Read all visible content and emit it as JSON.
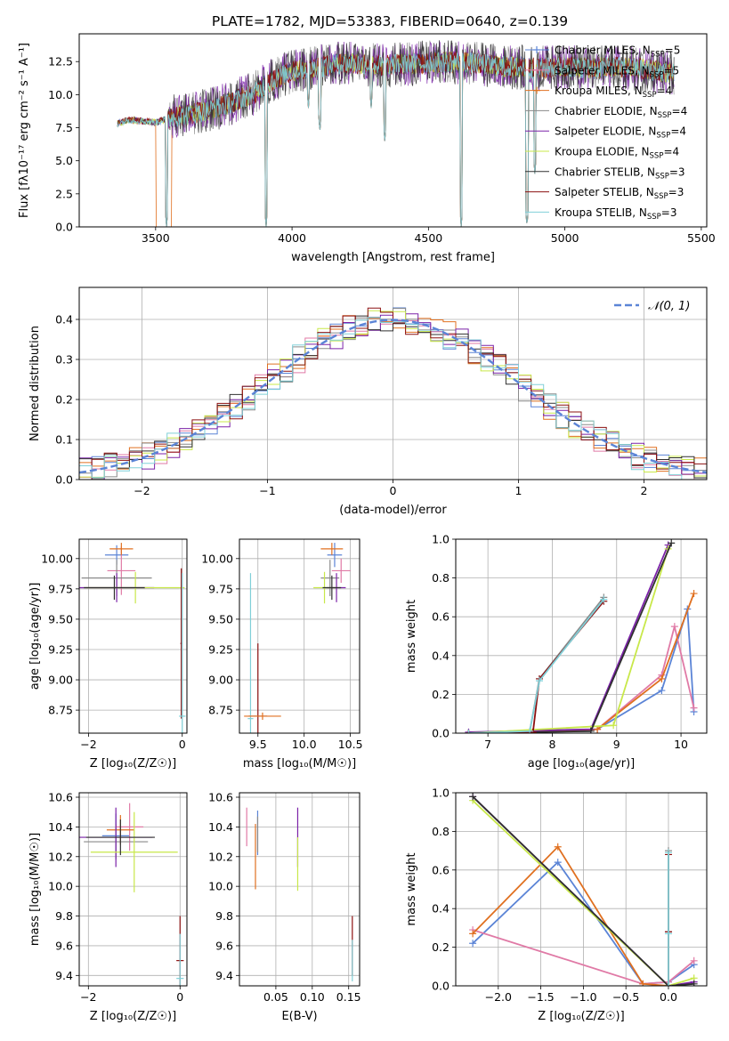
{
  "figure_title": "PLATE=1782, MJD=53383, FIBERID=0640, z=0.139",
  "colors": {
    "blue": "#5b84d6",
    "orange": "#e07020",
    "pink": "#e07aa6",
    "gray": "#8a8a8a",
    "purple": "#7b22a8",
    "lime": "#c8e84a",
    "dark": "#303030",
    "red": "#8c1010",
    "cyan": "#80d0d8"
  },
  "chart_data": [
    {
      "id": "spectrum",
      "type": "line",
      "xlabel": "wavelength [Angstrom, rest frame]",
      "ylabel": "Flux [fλ10⁻¹⁷ erg cm⁻² s⁻¹ A⁻¹]",
      "xlim": [
        3220,
        5520
      ],
      "ylim": [
        0,
        14.6
      ],
      "xticks": [
        3500,
        4000,
        4500,
        5000,
        5500
      ],
      "yticks": [
        0.0,
        2.5,
        5.0,
        7.5,
        10.0,
        12.5
      ],
      "legend_position": "upper-right",
      "series": [
        {
          "name": "Chabrier MILES, N",
          "sub": "SSP",
          "tail": "=5",
          "color": "#5b84d6",
          "marker": "+"
        },
        {
          "name": "Salpeter MILES, N",
          "sub": "SSP",
          "tail": "=5",
          "color": "#e07aa6",
          "marker": "+"
        },
        {
          "name": "Kroupa MILES, N",
          "sub": "SSP",
          "tail": "=4",
          "color": "#e07020",
          "marker": "+"
        },
        {
          "name": "Chabrier ELODIE, N",
          "sub": "SSP",
          "tail": "=4",
          "color": "#8a8a8a",
          "marker": ""
        },
        {
          "name": "Salpeter ELODIE, N",
          "sub": "SSP",
          "tail": "=4",
          "color": "#7b22a8",
          "marker": ""
        },
        {
          "name": "Kroupa ELODIE, N",
          "sub": "SSP",
          "tail": "=4",
          "color": "#c8e84a",
          "marker": ""
        },
        {
          "name": "Chabrier STELIB, N",
          "sub": "SSP",
          "tail": "=3",
          "color": "#303030",
          "marker": ""
        },
        {
          "name": "Salpeter STELIB, N",
          "sub": "SSP",
          "tail": "=3",
          "color": "#8c1010",
          "marker": ""
        },
        {
          "name": "Kroupa STELIB, N",
          "sub": "SSP",
          "tail": "=3",
          "color": "#80d0d8",
          "marker": ""
        }
      ],
      "profile": [
        [
          3360,
          7.8
        ],
        [
          3400,
          8.1
        ],
        [
          3450,
          8.0
        ],
        [
          3500,
          7.9
        ],
        [
          3560,
          8.3
        ],
        [
          3650,
          8.6
        ],
        [
          3760,
          9.2
        ],
        [
          3800,
          9.6
        ],
        [
          3870,
          10.2
        ],
        [
          3920,
          11.0
        ],
        [
          4000,
          11.8
        ],
        [
          4100,
          12.1
        ],
        [
          4200,
          12.4
        ],
        [
          4340,
          12.2
        ],
        [
          4400,
          12.3
        ],
        [
          4500,
          12.4
        ],
        [
          4620,
          12.5
        ],
        [
          4700,
          12.3
        ],
        [
          4800,
          12.1
        ],
        [
          4900,
          12.0
        ],
        [
          5000,
          12.1
        ],
        [
          5100,
          12.0
        ],
        [
          5200,
          12.1
        ],
        [
          5300,
          11.9
        ],
        [
          5400,
          11.6
        ]
      ],
      "dips": [
        [
          3540,
          0
        ],
        [
          3905,
          0
        ],
        [
          4060,
          9.0
        ],
        [
          4102,
          7.2
        ],
        [
          4290,
          9.0
        ],
        [
          4340,
          6.5
        ],
        [
          4620,
          0
        ],
        [
          4861,
          0
        ],
        [
          4890,
          4.0
        ]
      ]
    },
    {
      "id": "residuals",
      "type": "line",
      "xlabel": "(data-model)/error",
      "ylabel": "Normed distribution",
      "xlim": [
        -2.5,
        2.5
      ],
      "ylim": [
        0,
        0.48
      ],
      "xticks": [
        -2,
        -1,
        0,
        1,
        2
      ],
      "yticks": [
        0.0,
        0.1,
        0.2,
        0.3,
        0.4
      ],
      "grid": true,
      "legend_position": "upper-right",
      "normal_label": "𝒩(0, 1)",
      "normal_color": "#5b84d6",
      "bin_width": 0.1,
      "hist_colors": [
        "#5b84d6",
        "#e07aa6",
        "#e07020",
        "#8a8a8a",
        "#7b22a8",
        "#c8e84a",
        "#303030",
        "#8c1010",
        "#80d0d8"
      ]
    },
    {
      "id": "age-z",
      "type": "scatter",
      "xlabel": "Z [log₁₀(Z/Z☉)]",
      "ylabel": "age  [log₁₀(age/yr)]",
      "xlim": [
        -2.2,
        0.1
      ],
      "ylim": [
        8.56,
        10.16
      ],
      "xticks": [
        -2,
        0
      ],
      "yticks": [
        8.75,
        9.0,
        9.25,
        9.5,
        9.75,
        10.0
      ],
      "grid": true,
      "points": [
        {
          "x": -1.4,
          "y": 10.03,
          "xe": 0.25,
          "ye": 0.08,
          "color": "#5b84d6"
        },
        {
          "x": -1.3,
          "y": 9.9,
          "xe": 0.3,
          "ye": 0.2,
          "color": "#e07aa6"
        },
        {
          "x": -1.3,
          "y": 10.08,
          "xe": 0.25,
          "ye": 0.05,
          "color": "#e07020"
        },
        {
          "x": -1.4,
          "y": 9.84,
          "xe": 0.75,
          "ye": 0.15,
          "color": "#8a8a8a"
        },
        {
          "x": -1.4,
          "y": 9.76,
          "xe": 0.8,
          "ye": 0.12,
          "color": "#7b22a8"
        },
        {
          "x": -1.0,
          "y": 9.76,
          "xe": 1.05,
          "ye": 0.13,
          "color": "#c8e84a"
        },
        {
          "x": -1.45,
          "y": 9.76,
          "xe": 0.65,
          "ye": 0.1,
          "color": "#303030"
        },
        {
          "x": -0.02,
          "y": 9.3,
          "xe": 0.02,
          "ye": 0.62,
          "color": "#8c1010"
        },
        {
          "x": 0.0,
          "y": 8.7,
          "xe": 0.07,
          "ye": 1.18,
          "color": "#80d0d8"
        }
      ]
    },
    {
      "id": "age-mass",
      "type": "scatter",
      "xlabel": "mass [log₁₀(M/M☉)]",
      "ylabel": "",
      "xlim": [
        9.3,
        10.6
      ],
      "ylim": [
        8.56,
        10.16
      ],
      "xticks": [
        9.5,
        10.0,
        10.5
      ],
      "yticks": [
        8.75,
        9.0,
        9.25,
        9.5,
        9.75,
        10.0
      ],
      "grid": true,
      "points": [
        {
          "x": 10.33,
          "y": 10.03,
          "xe": 0.08,
          "ye": 0.1,
          "color": "#5b84d6"
        },
        {
          "x": 10.4,
          "y": 9.9,
          "xe": 0.1,
          "ye": 0.1,
          "color": "#e07aa6"
        },
        {
          "x": 10.3,
          "y": 10.08,
          "xe": 0.12,
          "ye": 0.05,
          "color": "#e07020"
        },
        {
          "x": 10.28,
          "y": 9.84,
          "xe": 0.1,
          "ye": 0.15,
          "color": "#8a8a8a"
        },
        {
          "x": 10.35,
          "y": 9.76,
          "xe": 0.1,
          "ye": 0.12,
          "color": "#7b22a8"
        },
        {
          "x": 10.22,
          "y": 9.76,
          "xe": 0.12,
          "ye": 0.13,
          "color": "#c8e84a"
        },
        {
          "x": 10.3,
          "y": 9.76,
          "xe": 0.1,
          "ye": 0.1,
          "color": "#303030"
        },
        {
          "x": 9.5,
          "y": 8.7,
          "xe": 0.1,
          "ye": 0.6,
          "color": "#8c1010"
        },
        {
          "x": 9.42,
          "y": 8.68,
          "xe": 0.03,
          "ye": 1.2,
          "color": "#80d0d8"
        },
        {
          "x": 9.55,
          "y": 8.7,
          "xe": 0.2,
          "ye": 0.03,
          "color": "#e07020"
        }
      ]
    },
    {
      "id": "weight-age",
      "type": "line",
      "xlabel": "age  [log₁₀(age/yr)]",
      "ylabel": "mass weight",
      "xlim": [
        6.5,
        10.4
      ],
      "ylim": [
        0,
        1
      ],
      "xticks": [
        7,
        8,
        9,
        10
      ],
      "yticks": [
        0.0,
        0.2,
        0.4,
        0.6,
        0.8,
        1.0
      ],
      "grid": true,
      "series": [
        {
          "color": "#5b84d6",
          "x": [
            6.7,
            7.7,
            8.7,
            9.7,
            10.1,
            10.2
          ],
          "y": [
            0,
            0.005,
            0.02,
            0.22,
            0.64,
            0.11
          ]
        },
        {
          "color": "#e07aa6",
          "x": [
            6.7,
            7.7,
            8.7,
            9.7,
            9.9,
            10.2
          ],
          "y": [
            0,
            0.005,
            0.02,
            0.3,
            0.55,
            0.13
          ]
        },
        {
          "color": "#e07020",
          "x": [
            6.7,
            7.7,
            8.7,
            9.7,
            10.2
          ],
          "y": [
            0,
            0.005,
            0.02,
            0.28,
            0.72
          ]
        },
        {
          "color": "#8a8a8a",
          "x": [
            6.7,
            7.65,
            7.8,
            8.8
          ],
          "y": [
            0,
            0.01,
            0.28,
            0.7
          ]
        },
        {
          "color": "#7b22a8",
          "x": [
            6.7,
            8.6,
            9.8
          ],
          "y": [
            0.005,
            0.02,
            0.97
          ]
        },
        {
          "color": "#c8e84a",
          "x": [
            6.7,
            8.95,
            9.8
          ],
          "y": [
            0,
            0.04,
            0.95
          ]
        },
        {
          "color": "#303030",
          "x": [
            6.7,
            8.6,
            9.85
          ],
          "y": [
            0,
            0.01,
            0.98
          ]
        },
        {
          "color": "#8c1010",
          "x": [
            6.7,
            7.7,
            7.8,
            8.8
          ],
          "y": [
            0,
            0.005,
            0.28,
            0.68
          ]
        },
        {
          "color": "#80d0d8",
          "x": [
            6.7,
            7.65,
            7.8,
            8.8
          ],
          "y": [
            0,
            0.01,
            0.27,
            0.69
          ]
        }
      ]
    },
    {
      "id": "mass-z",
      "type": "scatter",
      "xlabel": "Z [log₁₀(Z/Z☉)]",
      "ylabel": "mass [log₁₀(M/M☉)]",
      "xlim": [
        -2.2,
        0.15
      ],
      "ylim": [
        9.33,
        10.63
      ],
      "xticks": [
        -2,
        0
      ],
      "yticks": [
        9.4,
        9.6,
        9.8,
        10.0,
        10.2,
        10.4,
        10.6
      ],
      "grid": true,
      "points": [
        {
          "x": -1.4,
          "y": 10.34,
          "xe": 0.3,
          "ye": 0.15,
          "color": "#5b84d6"
        },
        {
          "x": -1.1,
          "y": 10.4,
          "xe": 0.3,
          "ye": 0.16,
          "color": "#e07aa6"
        },
        {
          "x": -1.3,
          "y": 10.38,
          "xe": 0.3,
          "ye": 0.1,
          "color": "#e07020"
        },
        {
          "x": -1.4,
          "y": 10.3,
          "xe": 0.7,
          "ye": 0.12,
          "color": "#8a8a8a"
        },
        {
          "x": -1.4,
          "y": 10.33,
          "xe": 0.8,
          "ye": 0.2,
          "color": "#7b22a8"
        },
        {
          "x": -1.0,
          "y": 10.23,
          "xe": 0.95,
          "ye": 0.27,
          "color": "#c8e84a"
        },
        {
          "x": -1.3,
          "y": 10.33,
          "xe": 0.75,
          "ye": 0.12,
          "color": "#303030"
        },
        {
          "x": 0.0,
          "y": 9.5,
          "xe": 0.08,
          "ye": 0.3,
          "color": "#8c1010"
        },
        {
          "x": 0.0,
          "y": 9.38,
          "xe": 0.08,
          "ye": 0.3,
          "color": "#80d0d8"
        }
      ]
    },
    {
      "id": "mass-ebv",
      "type": "scatter",
      "xlabel": "E(B-V)",
      "ylabel": "",
      "xlim": [
        0.0,
        0.165
      ],
      "ylim": [
        9.33,
        10.63
      ],
      "xticks": [
        0.05,
        0.1,
        0.15
      ],
      "yticks": [
        9.4,
        9.6,
        9.8,
        10.0,
        10.2,
        10.4,
        10.6
      ],
      "grid": true,
      "points": [
        {
          "x": 0.025,
          "y": 10.36,
          "xe": 0,
          "ye": 0.15,
          "color": "#5b84d6"
        },
        {
          "x": 0.01,
          "y": 10.4,
          "xe": 0,
          "ye": 0.13,
          "color": "#e07aa6"
        },
        {
          "x": 0.022,
          "y": 10.2,
          "xe": 0,
          "ye": 0.22,
          "color": "#e07020"
        },
        {
          "x": 0.025,
          "y": 10.35,
          "xe": 0,
          "ye": 0.12,
          "color": "#8a8a8a"
        },
        {
          "x": 0.08,
          "y": 10.33,
          "xe": 0,
          "ye": 0.2,
          "color": "#7b22a8"
        },
        {
          "x": 0.08,
          "y": 10.15,
          "xe": 0,
          "ye": 0.18,
          "color": "#c8e84a"
        },
        {
          "x": 0.155,
          "y": 9.6,
          "xe": 0,
          "ye": 0.2,
          "color": "#8c1010"
        },
        {
          "x": 0.155,
          "y": 9.5,
          "xe": 0,
          "ye": 0.14,
          "color": "#80d0d8"
        }
      ]
    },
    {
      "id": "weight-z",
      "type": "line",
      "xlabel": "Z [log₁₀(Z/Z☉)]",
      "ylabel": "mass weight",
      "xlim": [
        -2.5,
        0.45
      ],
      "ylim": [
        0,
        1
      ],
      "xticks": [
        -2.0,
        -1.5,
        -1.0,
        -0.5,
        0.0
      ],
      "yticks": [
        0.0,
        0.2,
        0.4,
        0.6,
        0.8,
        1.0
      ],
      "grid": true,
      "series": [
        {
          "color": "#5b84d6",
          "x": [
            -2.3,
            -1.3,
            -0.3,
            0.0,
            0.3
          ],
          "y": [
            0.22,
            0.64,
            0.01,
            0.02,
            0.11
          ]
        },
        {
          "color": "#e07aa6",
          "x": [
            -2.3,
            -0.3,
            0.0,
            0.3
          ],
          "y": [
            0.29,
            0.01,
            0.02,
            0.13
          ]
        },
        {
          "color": "#e07020",
          "x": [
            -2.3,
            -1.3,
            -0.3,
            0.0
          ],
          "y": [
            0.27,
            0.72,
            0.01,
            0.0
          ]
        },
        {
          "color": "#8a8a8a",
          "x": [
            0.0,
            0.0,
            0.0
          ],
          "y": [
            0.0,
            0.28,
            0.7
          ]
        },
        {
          "color": "#7b22a8",
          "x": [
            -2.3,
            0.0,
            0.3
          ],
          "y": [
            0.98,
            0.0,
            0.02
          ]
        },
        {
          "color": "#c8e84a",
          "x": [
            -2.3,
            0.0,
            0.3
          ],
          "y": [
            0.96,
            0.0,
            0.04
          ]
        },
        {
          "color": "#303030",
          "x": [
            -2.3,
            0.0,
            0.3
          ],
          "y": [
            0.98,
            0.0,
            0.01
          ]
        },
        {
          "color": "#8c1010",
          "x": [
            0.0,
            0.0,
            0.0
          ],
          "y": [
            0.0,
            0.28,
            0.68
          ]
        },
        {
          "color": "#80d0d8",
          "x": [
            0.0,
            0.0,
            0.0
          ],
          "y": [
            0.0,
            0.27,
            0.69
          ]
        }
      ]
    }
  ]
}
